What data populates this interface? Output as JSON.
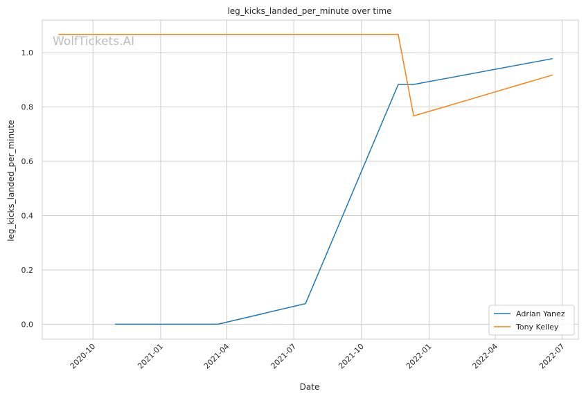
{
  "chart_data": {
    "type": "line",
    "title": "leg_kicks_landed_per_minute over time",
    "xlabel": "Date",
    "ylabel": "leg_kicks_landed_per_minute",
    "watermark": "WolfTickets.AI",
    "x_ticks": [
      "2020-10",
      "2021-01",
      "2021-04",
      "2021-07",
      "2021-10",
      "2022-01",
      "2022-04",
      "2022-07"
    ],
    "y_ticks": [
      "0.0",
      "0.2",
      "0.4",
      "0.6",
      "0.8",
      "1.0"
    ],
    "xlim": [
      "2020-07-24",
      "2022-07-23"
    ],
    "ylim": [
      -0.055,
      1.12
    ],
    "grid": true,
    "legend_position": "bottom-right",
    "series": [
      {
        "name": "Adrian Yanez",
        "color": "#1f77b4",
        "points": [
          {
            "x": "2020-10-31",
            "y": 0.0
          },
          {
            "x": "2021-03-20",
            "y": 0.0
          },
          {
            "x": "2021-07-17",
            "y": 0.076
          },
          {
            "x": "2021-11-20",
            "y": 0.883
          },
          {
            "x": "2021-12-11",
            "y": 0.883
          },
          {
            "x": "2022-06-18",
            "y": 0.978
          }
        ]
      },
      {
        "name": "Tony Kelley",
        "color": "#ff7f0e",
        "points": [
          {
            "x": "2020-08-15",
            "y": 1.067
          },
          {
            "x": "2021-11-20",
            "y": 1.067
          },
          {
            "x": "2021-12-11",
            "y": 0.767
          },
          {
            "x": "2022-06-18",
            "y": 0.918
          }
        ]
      }
    ]
  }
}
